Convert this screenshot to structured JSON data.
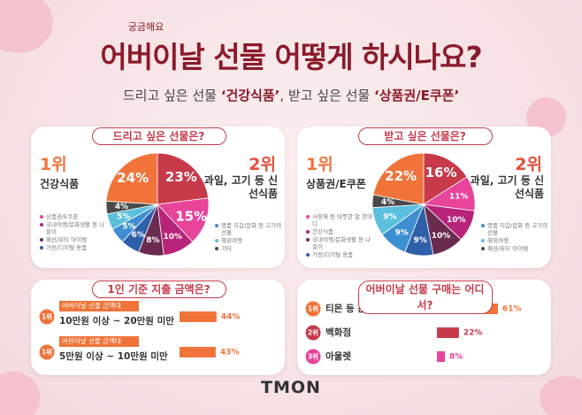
{
  "header": {
    "tag": "궁금해요",
    "title": "어버이날 선물 어떻게 하시나요?",
    "subtitle": [
      "드리고 싶은 선물 ",
      "‘건강식품’",
      ", 받고 싶은 선물 ",
      "‘상품권/E쿠폰’"
    ]
  },
  "chart_data": [
    {
      "type": "pie",
      "title": "드리고 싶은 선물은?",
      "ranks": [
        "1위",
        "2위"
      ],
      "categories": [
        "건강식품",
        "과일, 고기 등 신선식품",
        "상품권/E쿠폰",
        "국내여행/문화생활 등 나들이",
        "패션/뷰티 아이템",
        "가전/디지털 용품",
        "명품 지갑/잡화 등 고가의 선물",
        "해외여행",
        "기타"
      ],
      "values": [
        24,
        23,
        15,
        10,
        8,
        6,
        5,
        5,
        4
      ],
      "value_labels": [
        "24%",
        "23%",
        "15%",
        "10%",
        "8%",
        "6%",
        "5%",
        "5%",
        "4%"
      ],
      "colors": [
        "#f0743a",
        "#c63a4a",
        "#e8449a",
        "#b8237a",
        "#6b2b4f",
        "#2f5fa8",
        "#3d8fd1",
        "#5bc0de",
        "#4a4a4a"
      ]
    },
    {
      "type": "pie",
      "title": "받고 싶은 선물은?",
      "ranks": [
        "1위",
        "2위"
      ],
      "categories": [
        "상품권/E쿠폰",
        "과일, 고기 등 신선식품",
        "사랑해 등 따뜻한 말 한마디",
        "건강식품",
        "국내여행/문화생활 등 나들이",
        "가전/디지털 용품",
        "명품 지갑/잡화 등 고가의 선물",
        "해외여행",
        "패션/뷰티 아이템"
      ],
      "values": [
        22,
        16,
        11,
        10,
        10,
        9,
        9,
        9,
        4
      ],
      "value_labels": [
        "22%",
        "16%",
        "11%",
        "10%",
        "10%",
        "9%",
        "9%",
        "9%",
        "4%"
      ],
      "colors": [
        "#f0743a",
        "#c63a4a",
        "#e8449a",
        "#b8237a",
        "#6b2b4f",
        "#2f5fa8",
        "#3d8fd1",
        "#5bc0de",
        "#4a4a4a"
      ]
    },
    {
      "type": "bar",
      "title": "1인 기준 지출 금액은?",
      "ranks": [
        "1위",
        "1위"
      ],
      "tags": [
        "어버이날 선물 금액대",
        "어린이날 선물 금액대"
      ],
      "categories": [
        "10만원 이상 ~ 20만원 미만",
        "5만원 이상 ~ 10만원 미만"
      ],
      "values": [
        44,
        43
      ],
      "value_labels": [
        "44%",
        "43%"
      ],
      "colors": [
        "#f0743a",
        "#f0743a"
      ],
      "xlim": [
        0,
        100
      ]
    },
    {
      "type": "bar",
      "title": "어버이날 선물 구매는 어디서?",
      "ranks": [
        "1위",
        "2위",
        "3위"
      ],
      "categories": [
        "티몬 등 온라인 쇼핑 채널",
        "백화점",
        "아울렛"
      ],
      "values": [
        61,
        22,
        8
      ],
      "value_labels": [
        "61%",
        "22%",
        "8%"
      ],
      "colors": [
        "#f0743a",
        "#c63a4a",
        "#e8449a"
      ],
      "xlim": [
        0,
        100
      ]
    }
  ],
  "footer": {
    "logo": "TMON"
  }
}
